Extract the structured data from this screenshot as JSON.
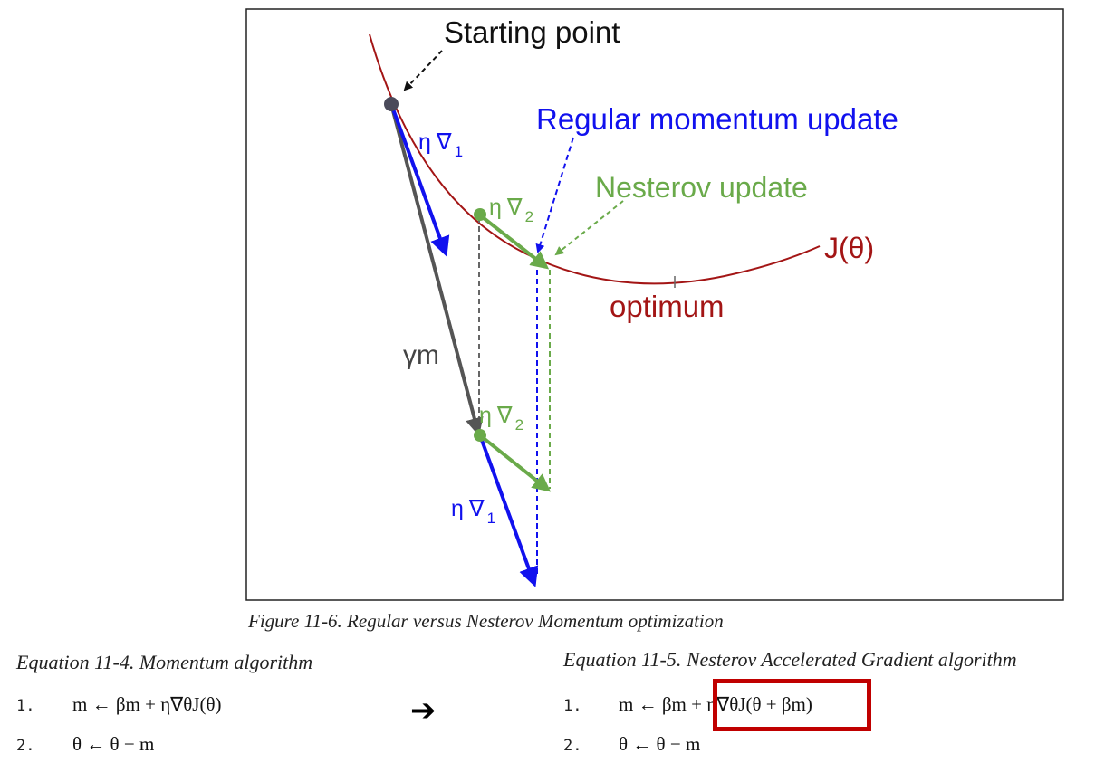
{
  "diagram": {
    "labels": {
      "starting_point": "Starting point",
      "regular_update": "Regular momentum update",
      "nesterov_update": "Nesterov update",
      "cost": "J(θ)",
      "optimum": "optimum",
      "gamma_m": "γm",
      "eta": "η",
      "nabla": "∇",
      "sub1": "1",
      "sub2": "2"
    },
    "colors": {
      "curve": "#a31515",
      "regular": "#1111ee",
      "nesterov": "#6aaa4a",
      "momentum": "#555555",
      "start_point": "#4a4a5a"
    }
  },
  "figure_caption": "Figure 11-6. Regular versus Nesterov Momentum optimization",
  "equations": {
    "left": {
      "title": "Equation 11-4. Momentum algorithm",
      "lines": [
        {
          "num": "1.",
          "expr": "m ← βm + η∇θJ(θ)"
        },
        {
          "num": "2.",
          "expr": "θ ← θ − m"
        }
      ]
    },
    "arrow": "➔",
    "right": {
      "title": "Equation 11-5. Nesterov Accelerated Gradient algorithm",
      "lines": [
        {
          "num": "1.",
          "expr": "m ← βm + η∇θJ(θ + βm)"
        },
        {
          "num": "2.",
          "expr": "θ ← θ − m"
        }
      ]
    }
  }
}
